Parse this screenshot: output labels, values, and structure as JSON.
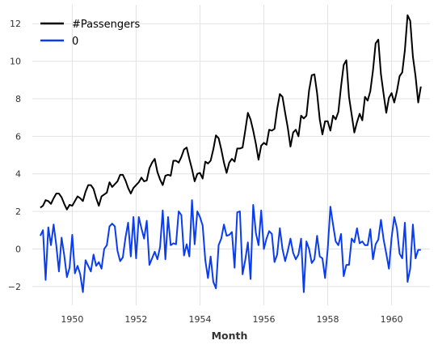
{
  "chart_data": {
    "type": "line",
    "title": "",
    "xlabel": "Month",
    "ylabel": "",
    "grid": true,
    "legend_position": "top-left",
    "xlim": [
      1948.75,
      1961.2
    ],
    "ylim": [
      -3.0,
      13.0
    ],
    "x_ticks": [
      1950,
      1952,
      1954,
      1956,
      1958,
      1960
    ],
    "x_tick_labels": [
      "1950",
      "1952",
      "1954",
      "1956",
      "1958",
      "1960"
    ],
    "y_ticks": [
      -2,
      0,
      2,
      4,
      6,
      8,
      10,
      12
    ],
    "y_tick_labels": [
      "−2",
      "0",
      "2",
      "4",
      "6",
      "8",
      "10",
      "12"
    ],
    "x_start_year": 1949,
    "points_per_year": 12,
    "series": [
      {
        "name": "#Passengers",
        "color": "#000000",
        "values": [
          2.2,
          2.3,
          2.6,
          2.55,
          2.4,
          2.7,
          2.95,
          2.95,
          2.75,
          2.4,
          2.1,
          2.35,
          2.3,
          2.55,
          2.8,
          2.7,
          2.55,
          3.05,
          3.4,
          3.4,
          3.2,
          2.7,
          2.3,
          2.8,
          2.9,
          3.0,
          3.55,
          3.3,
          3.45,
          3.6,
          3.95,
          3.95,
          3.65,
          3.25,
          2.95,
          3.25,
          3.4,
          3.55,
          3.8,
          3.6,
          3.65,
          4.3,
          4.6,
          4.8,
          4.1,
          3.7,
          3.4,
          3.9,
          3.95,
          3.9,
          4.7,
          4.7,
          4.6,
          4.9,
          5.3,
          5.4,
          4.8,
          4.25,
          3.6,
          4.0,
          4.05,
          3.75,
          4.65,
          4.55,
          4.7,
          5.3,
          6.05,
          5.9,
          5.3,
          4.6,
          4.05,
          4.6,
          4.8,
          4.65,
          5.35,
          5.35,
          5.4,
          6.3,
          7.25,
          6.9,
          6.3,
          5.6,
          4.75,
          5.5,
          5.65,
          5.55,
          6.35,
          6.3,
          6.4,
          7.45,
          8.25,
          8.1,
          7.25,
          6.45,
          5.45,
          6.2,
          6.35,
          6.0,
          7.1,
          6.95,
          7.1,
          8.45,
          9.25,
          9.3,
          8.3,
          6.9,
          6.1,
          6.8,
          6.8,
          6.3,
          7.1,
          6.9,
          7.3,
          8.65,
          9.8,
          10.05,
          8.1,
          7.15,
          6.2,
          6.75,
          7.2,
          6.85,
          8.1,
          7.9,
          8.4,
          9.5,
          10.95,
          11.15,
          9.3,
          8.25,
          7.25,
          8.05,
          8.3,
          7.8,
          8.4,
          9.2,
          9.4,
          10.6,
          12.45,
          12.15,
          10.25,
          9.2,
          7.8,
          8.65
        ]
      },
      {
        "name": "0",
        "color": "#0a3cf0",
        "values": [
          0.7,
          1.0,
          -1.65,
          1.15,
          0.2,
          1.3,
          0.2,
          -1.2,
          0.6,
          -0.35,
          -1.5,
          -1.0,
          0.75,
          -1.3,
          -0.9,
          -1.35,
          -2.3,
          -0.6,
          -0.9,
          -1.2,
          -0.3,
          -0.9,
          -0.7,
          -1.05,
          0.0,
          0.2,
          1.2,
          1.35,
          1.2,
          -0.1,
          -0.65,
          -0.45,
          0.6,
          1.4,
          -0.4,
          1.7,
          -0.5,
          1.7,
          1.1,
          0.55,
          1.5,
          -0.85,
          -0.5,
          -0.15,
          -0.55,
          0.1,
          2.05,
          -0.55,
          1.7,
          0.2,
          0.3,
          0.25,
          2.0,
          1.8,
          -0.35,
          0.25,
          -0.4,
          2.6,
          0.25,
          2.0,
          1.7,
          1.25,
          -0.6,
          -1.55,
          -0.4,
          -1.75,
          -2.1,
          0.2,
          0.55,
          1.3,
          0.7,
          0.75,
          0.9,
          -1.0,
          1.95,
          2.0,
          -1.35,
          -0.6,
          0.35,
          -1.6,
          2.35,
          0.85,
          0.2,
          2.05,
          0.0,
          0.55,
          0.95,
          0.8,
          -0.7,
          -0.3,
          1.1,
          0.0,
          -0.65,
          -0.1,
          0.55,
          -0.2,
          -0.55,
          -0.3,
          0.55,
          -2.3,
          0.4,
          0.0,
          -0.75,
          -0.55,
          0.7,
          -0.4,
          -0.5,
          -1.55,
          0.0,
          2.25,
          1.3,
          0.4,
          0.2,
          0.8,
          -1.45,
          -0.85,
          -0.85,
          0.55,
          0.35,
          1.1,
          0.3,
          0.4,
          0.2,
          0.2,
          1.05,
          -0.55,
          0.25,
          0.5,
          1.55,
          0.5,
          -0.25,
          -1.05,
          0.6,
          1.7,
          1.1,
          -0.25,
          -0.5,
          1.4,
          -1.75,
          -1.05,
          1.3,
          -0.5,
          -0.05,
          -0.05
        ]
      }
    ]
  }
}
